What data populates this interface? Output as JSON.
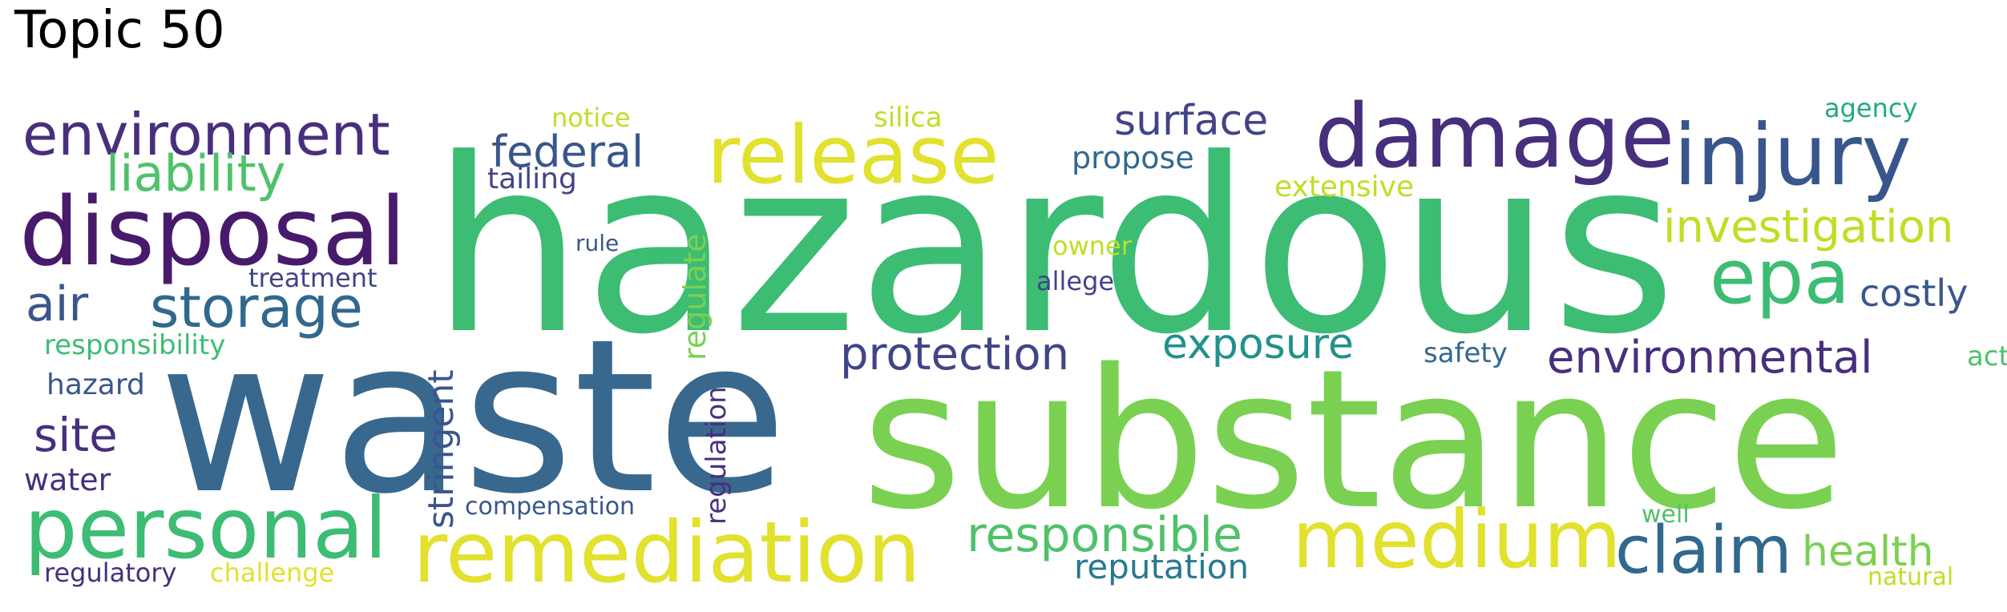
{
  "title": "Topic 50",
  "colors": {
    "dark_purple": "#481a6c",
    "purple": "#472f7d",
    "indigo": "#414487",
    "blue": "#39568c",
    "steel_blue": "#31688e",
    "teal": "#2a788e",
    "green_teal": "#21918c",
    "sea_green": "#22a884",
    "green": "#3dbc74",
    "light_green": "#4fc16b",
    "lime": "#7ad151",
    "yellow_green": "#bddf26",
    "yellow": "#e1e12e"
  },
  "words": [
    {
      "text": "hazardous",
      "color": "#3dbc74"
    },
    {
      "text": "waste",
      "color": "#39688e"
    },
    {
      "text": "substance",
      "color": "#7ad151"
    },
    {
      "text": "release",
      "color": "#e1e12e"
    },
    {
      "text": "damage",
      "color": "#472f7d"
    },
    {
      "text": "injury",
      "color": "#39568c"
    },
    {
      "text": "disposal",
      "color": "#481a6c"
    },
    {
      "text": "environment",
      "color": "#472f7d"
    },
    {
      "text": "liability",
      "color": "#4fc16b"
    },
    {
      "text": "storage",
      "color": "#31688e"
    },
    {
      "text": "air",
      "color": "#39568c"
    },
    {
      "text": "personal",
      "color": "#3dbc74"
    },
    {
      "text": "remediation",
      "color": "#e1e12e"
    },
    {
      "text": "medium",
      "color": "#e1e12e"
    },
    {
      "text": "epa",
      "color": "#3dbc74"
    },
    {
      "text": "claim",
      "color": "#31688e"
    },
    {
      "text": "investigation",
      "color": "#bddf26"
    },
    {
      "text": "environmental",
      "color": "#472f7d"
    },
    {
      "text": "protection",
      "color": "#414487"
    },
    {
      "text": "exposure",
      "color": "#21918c"
    },
    {
      "text": "responsible",
      "color": "#4fc16b"
    },
    {
      "text": "health",
      "color": "#7ad151"
    },
    {
      "text": "surface",
      "color": "#414487"
    },
    {
      "text": "federal",
      "color": "#39568c"
    },
    {
      "text": "site",
      "color": "#472f7d"
    },
    {
      "text": "costly",
      "color": "#39568c"
    },
    {
      "text": "stringent",
      "color": "#39568c"
    },
    {
      "text": "regulate",
      "color": "#7ad151"
    },
    {
      "text": "regulation",
      "color": "#472f7d"
    },
    {
      "text": "reputation",
      "color": "#2a788e"
    },
    {
      "text": "propose",
      "color": "#31688e"
    },
    {
      "text": "extensive",
      "color": "#bddf26"
    },
    {
      "text": "tailing",
      "color": "#414487"
    },
    {
      "text": "responsibility",
      "color": "#3dbc74"
    },
    {
      "text": "hazard",
      "color": "#39568c"
    },
    {
      "text": "water",
      "color": "#472f7d"
    },
    {
      "text": "treatment",
      "color": "#414487"
    },
    {
      "text": "safety",
      "color": "#31688e"
    },
    {
      "text": "act",
      "color": "#4fc16b"
    },
    {
      "text": "allege",
      "color": "#414487"
    },
    {
      "text": "owner",
      "color": "#bddf26"
    },
    {
      "text": "rule",
      "color": "#39568c"
    },
    {
      "text": "notice",
      "color": "#bddf26"
    },
    {
      "text": "silica",
      "color": "#bddf26"
    },
    {
      "text": "agency",
      "color": "#22a884"
    },
    {
      "text": "compensation",
      "color": "#39568c"
    },
    {
      "text": "regulatory",
      "color": "#472f7d"
    },
    {
      "text": "challenge",
      "color": "#e1e12e"
    },
    {
      "text": "well",
      "color": "#4fc16b"
    },
    {
      "text": "natural",
      "color": "#bddf26"
    }
  ]
}
